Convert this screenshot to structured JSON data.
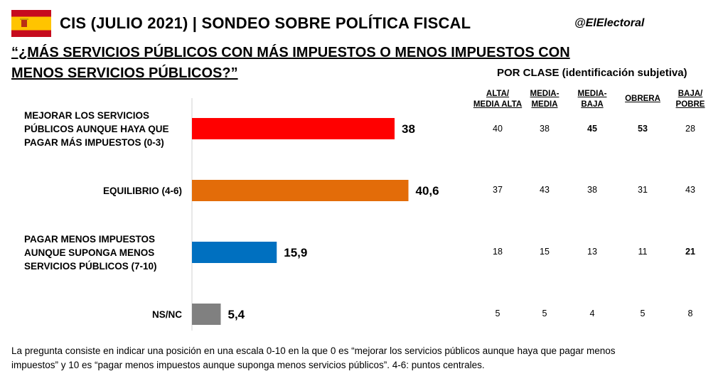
{
  "header": {
    "title": "CIS (JULIO 2021) | SONDEO SOBRE POLÍTICA FISCAL",
    "handle": "@ElElectoral",
    "question": "“¿MÁS SERVICIOS PÚBLICOS CON MÁS IMPUESTOS O MENOS IMPUESTOS CON MENOS SERVICIOS PÚBLICOS?”",
    "flag_colors": {
      "red": "#c60b1e",
      "yellow": "#ffc400"
    }
  },
  "chart_data": {
    "type": "bar",
    "orientation": "horizontal",
    "categories": [
      "MEJORAR LOS SERVICIOS PÚBLICOS AUNQUE HAYA QUE PAGAR MÁS IMPUESTOS (0-3)",
      "EQUILIBRIO (4-6)",
      "PAGAR MENOS IMPUESTOS AUNQUE SUPONGA MENOS SERVICIOS PÚBLICOS (7-10)",
      "NS/NC"
    ],
    "category_lines": [
      [
        "MEJORAR LOS SERVICIOS",
        "PÚBLICOS AUNQUE HAYA QUE",
        "PAGAR MÁS IMPUESTOS (0-3)"
      ],
      [
        "EQUILIBRIO (4-6)"
      ],
      [
        "PAGAR MENOS IMPUESTOS",
        "AUNQUE SUPONGA MENOS",
        "SERVICIOS PÚBLICOS (7-10)"
      ],
      [
        "NS/NC"
      ]
    ],
    "values": [
      38,
      40.6,
      15.9,
      5.4
    ],
    "value_labels": [
      "38",
      "40,6",
      "15,9",
      "5,4"
    ],
    "colors": [
      "#ff0000",
      "#e36c09",
      "#0070c0",
      "#808080"
    ],
    "xlim": [
      0,
      45
    ],
    "grid": false
  },
  "table": {
    "title": "POR CLASE (identificación subjetiva)",
    "columns": [
      [
        "ALTA/",
        "MEDIA ALTA"
      ],
      [
        "MEDIA-",
        "MEDIA"
      ],
      [
        "MEDIA-",
        "BAJA"
      ],
      [
        "OBRERA"
      ],
      [
        "BAJA/",
        "POBRE"
      ]
    ],
    "rows": [
      [
        "40",
        "38",
        "45",
        "53",
        "28"
      ],
      [
        "37",
        "43",
        "38",
        "31",
        "43"
      ],
      [
        "18",
        "15",
        "13",
        "11",
        "21"
      ],
      [
        "5",
        "5",
        "4",
        "5",
        "8"
      ]
    ],
    "bold_cells": [
      [
        0,
        2
      ],
      [
        0,
        3
      ],
      [
        2,
        4
      ]
    ]
  },
  "footnote": "La pregunta consiste en indicar una posición en una escala 0-10 en la que 0 es “mejorar los servicios públicos aunque haya que pagar menos impuestos” y 10 es “pagar menos impuestos aunque suponga menos servicios públicos”. 4-6: puntos centrales."
}
